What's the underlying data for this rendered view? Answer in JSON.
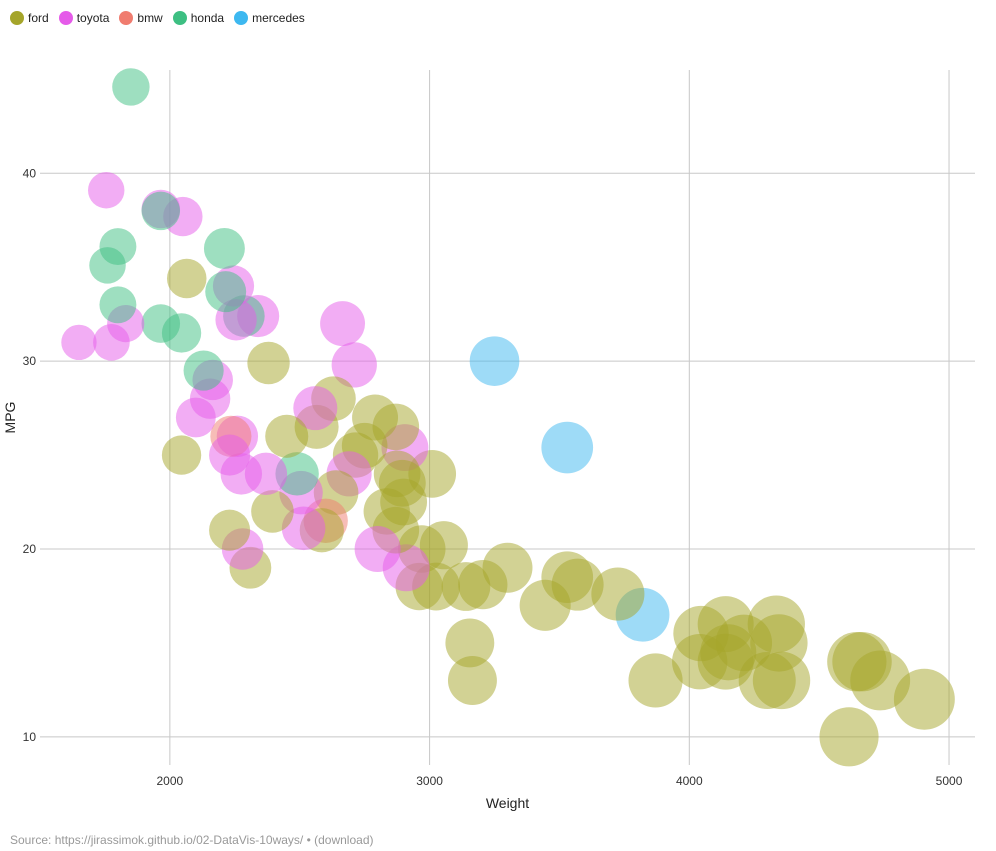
{
  "source": {
    "prefix": "Source: https://jirassimok.github.io/02-DataVis-10ways/",
    "separator": " • ",
    "download_label": "(download)"
  },
  "chart_data": {
    "type": "scatter",
    "title": "",
    "xlabel": "Weight",
    "ylabel": "MPG",
    "xlim": [
      1500,
      5100
    ],
    "ylim": [
      8.5,
      45.5
    ],
    "xticks": [
      2000,
      3000,
      4000,
      5000
    ],
    "yticks": [
      10,
      20,
      30,
      40
    ],
    "grid": true,
    "legend_position": "top-left",
    "size_encoding": "bubble area grows with weight",
    "series": [
      {
        "name": "ford",
        "color": "#a5a52a",
        "points": [
          {
            "x": 2045,
            "y": 25.0
          },
          {
            "x": 2065,
            "y": 34.4
          },
          {
            "x": 2230,
            "y": 21.0
          },
          {
            "x": 2310,
            "y": 19.0
          },
          {
            "x": 2380,
            "y": 29.9
          },
          {
            "x": 2395,
            "y": 22.0
          },
          {
            "x": 2450,
            "y": 26.0
          },
          {
            "x": 2565,
            "y": 26.5
          },
          {
            "x": 2585,
            "y": 21.0
          },
          {
            "x": 2630,
            "y": 28.0
          },
          {
            "x": 2640,
            "y": 23.0
          },
          {
            "x": 2715,
            "y": 25.0
          },
          {
            "x": 2750,
            "y": 25.5
          },
          {
            "x": 2790,
            "y": 27.0
          },
          {
            "x": 2835,
            "y": 22.0
          },
          {
            "x": 2870,
            "y": 26.5
          },
          {
            "x": 2870,
            "y": 21.0
          },
          {
            "x": 2875,
            "y": 24.0
          },
          {
            "x": 2895,
            "y": 23.5
          },
          {
            "x": 2900,
            "y": 22.5
          },
          {
            "x": 2960,
            "y": 18.0
          },
          {
            "x": 2970,
            "y": 20.0
          },
          {
            "x": 3010,
            "y": 24.0
          },
          {
            "x": 3025,
            "y": 18.0
          },
          {
            "x": 3055,
            "y": 20.2
          },
          {
            "x": 3140,
            "y": 18.0
          },
          {
            "x": 3155,
            "y": 15.0
          },
          {
            "x": 3165,
            "y": 13.0
          },
          {
            "x": 3205,
            "y": 18.1
          },
          {
            "x": 3300,
            "y": 19.0
          },
          {
            "x": 3445,
            "y": 17.0
          },
          {
            "x": 3530,
            "y": 18.5
          },
          {
            "x": 3570,
            "y": 18.1
          },
          {
            "x": 3725,
            "y": 17.6
          },
          {
            "x": 3870,
            "y": 13.0
          },
          {
            "x": 4045,
            "y": 15.5
          },
          {
            "x": 4040,
            "y": 14.0
          },
          {
            "x": 4140,
            "y": 16.0
          },
          {
            "x": 4140,
            "y": 14.0
          },
          {
            "x": 4150,
            "y": 14.5
          },
          {
            "x": 4210,
            "y": 15.0
          },
          {
            "x": 4300,
            "y": 13.0
          },
          {
            "x": 4335,
            "y": 16.0
          },
          {
            "x": 4345,
            "y": 15.0
          },
          {
            "x": 4355,
            "y": 13.0
          },
          {
            "x": 4615,
            "y": 10.0
          },
          {
            "x": 4645,
            "y": 14.0
          },
          {
            "x": 4665,
            "y": 14.0
          },
          {
            "x": 4735,
            "y": 13.0
          },
          {
            "x": 4905,
            "y": 12.0
          }
        ]
      },
      {
        "name": "toyota",
        "color": "#e55be9",
        "points": [
          {
            "x": 1650,
            "y": 31.0
          },
          {
            "x": 1755,
            "y": 39.1
          },
          {
            "x": 1775,
            "y": 31.0
          },
          {
            "x": 1830,
            "y": 32.0
          },
          {
            "x": 1965,
            "y": 38.1
          },
          {
            "x": 2050,
            "y": 37.7
          },
          {
            "x": 2100,
            "y": 27.0
          },
          {
            "x": 2155,
            "y": 28.0
          },
          {
            "x": 2165,
            "y": 29.0
          },
          {
            "x": 2230,
            "y": 25.0
          },
          {
            "x": 2245,
            "y": 34.0
          },
          {
            "x": 2255,
            "y": 32.2
          },
          {
            "x": 2260,
            "y": 26.0
          },
          {
            "x": 2275,
            "y": 24.0
          },
          {
            "x": 2280,
            "y": 20.0
          },
          {
            "x": 2340,
            "y": 32.4
          },
          {
            "x": 2370,
            "y": 24.0
          },
          {
            "x": 2505,
            "y": 23.0
          },
          {
            "x": 2515,
            "y": 21.1
          },
          {
            "x": 2560,
            "y": 27.5
          },
          {
            "x": 2665,
            "y": 32.0
          },
          {
            "x": 2690,
            "y": 24.0
          },
          {
            "x": 2710,
            "y": 29.8
          },
          {
            "x": 2800,
            "y": 20.0
          },
          {
            "x": 2905,
            "y": 25.4
          },
          {
            "x": 2910,
            "y": 19.0
          }
        ]
      },
      {
        "name": "bmw",
        "color": "#f07c6f",
        "points": [
          {
            "x": 2235,
            "y": 26.0
          },
          {
            "x": 2600,
            "y": 21.5
          }
        ]
      },
      {
        "name": "honda",
        "color": "#3dbf82",
        "points": [
          {
            "x": 1800,
            "y": 36.1
          },
          {
            "x": 1800,
            "y": 33.0
          },
          {
            "x": 1850,
            "y": 44.6
          },
          {
            "x": 1760,
            "y": 35.1
          },
          {
            "x": 1965,
            "y": 32.0
          },
          {
            "x": 1965,
            "y": 38.0
          },
          {
            "x": 2045,
            "y": 31.5
          },
          {
            "x": 2130,
            "y": 29.5
          },
          {
            "x": 2210,
            "y": 36.0
          },
          {
            "x": 2215,
            "y": 33.7
          },
          {
            "x": 2285,
            "y": 32.4
          },
          {
            "x": 2490,
            "y": 24.0
          }
        ]
      },
      {
        "name": "mercedes",
        "color": "#3db8f0",
        "points": [
          {
            "x": 3250,
            "y": 30.0
          },
          {
            "x": 3530,
            "y": 25.4
          },
          {
            "x": 3820,
            "y": 16.5
          }
        ]
      }
    ]
  }
}
